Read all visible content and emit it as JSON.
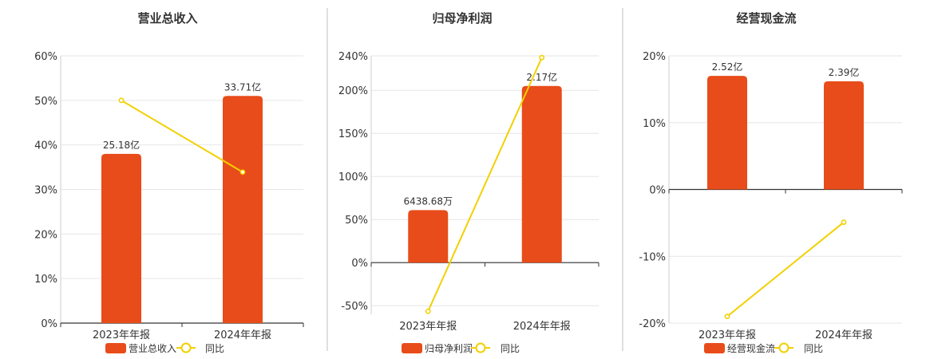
{
  "colors": {
    "bar": "#E84C1A",
    "line": "#F2D000",
    "grid": "#E6E6E6",
    "axis": "#333333",
    "divider": "#BFBFBF"
  },
  "chart_data": [
    {
      "type": "bar",
      "title": "营业总收入",
      "categories": [
        "2023年年报",
        "2024年年报"
      ],
      "series": [
        {
          "name": "营业总收入",
          "type": "bar",
          "values": [
            38.0,
            51.0
          ],
          "labels": [
            "25.18亿",
            "33.71亿"
          ]
        },
        {
          "name": "同比",
          "type": "line",
          "values": [
            50.0,
            33.9
          ]
        }
      ],
      "ylim": [
        0,
        60
      ],
      "yticks": [
        0,
        10,
        20,
        30,
        40,
        50,
        60
      ],
      "ytick_labels": [
        "0%",
        "10%",
        "20%",
        "30%",
        "40%",
        "50%",
        "60%"
      ],
      "grid": true,
      "legend": "bottom"
    },
    {
      "type": "bar",
      "title": "归母净利润",
      "categories": [
        "2023年年报",
        "2024年年报"
      ],
      "series": [
        {
          "name": "归母净利润",
          "type": "bar",
          "values": [
            61.0,
            205.0
          ],
          "labels": [
            "6438.68万",
            "2.17亿"
          ]
        },
        {
          "name": "同比",
          "type": "line",
          "values": [
            -56.5,
            238.0
          ]
        }
      ],
      "ylim": [
        -60,
        240
      ],
      "yticks": [
        -50,
        0,
        50,
        100,
        150,
        200,
        240
      ],
      "ytick_labels": [
        "-50%",
        "0%",
        "50%",
        "100%",
        "150%",
        "200%",
        "240%"
      ],
      "grid": true,
      "legend": "bottom"
    },
    {
      "type": "bar",
      "title": "经营现金流",
      "categories": [
        "2023年年报",
        "2024年年报"
      ],
      "series": [
        {
          "name": "经营现金流",
          "type": "bar",
          "values": [
            17.0,
            16.2
          ],
          "labels": [
            "2.52亿",
            "2.39亿"
          ]
        },
        {
          "name": "同比",
          "type": "line",
          "values": [
            -19.0,
            -4.9
          ]
        }
      ],
      "ylim": [
        -20,
        20
      ],
      "yticks": [
        -20,
        -10,
        0,
        10,
        20
      ],
      "ytick_labels": [
        "-20%",
        "-10%",
        "0%",
        "10%",
        "20%"
      ],
      "grid": true,
      "legend": "bottom"
    }
  ]
}
